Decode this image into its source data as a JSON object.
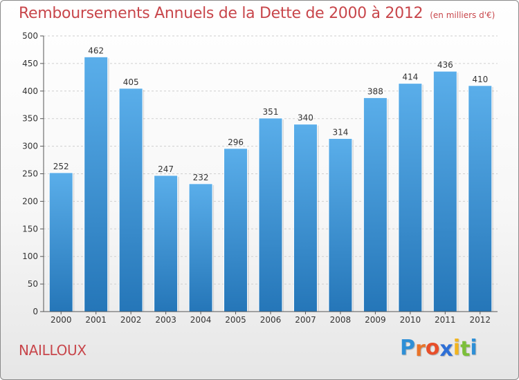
{
  "title": "Remboursements Annuels de la Dette de 2000 à 2012",
  "unit_note": "(en milliers d'€)",
  "place_name": "NAILLOUX",
  "logo": {
    "letters": [
      "P",
      "r",
      "o",
      "x",
      "i",
      "t",
      "i"
    ],
    "colors": [
      "#2e8fd6",
      "#e8742a",
      "#e84f2a",
      "#2e6fd6",
      "#f2b51e",
      "#7cbf3a",
      "#2e8fd6"
    ]
  },
  "colors": {
    "bar_top": "#5aaeea",
    "bar_bottom": "#2576b8",
    "axis": "#555555",
    "grid": "#cfcfcf",
    "title": "#c8464b"
  },
  "chart_data": {
    "type": "bar",
    "categories": [
      "2000",
      "2001",
      "2002",
      "2003",
      "2004",
      "2005",
      "2006",
      "2007",
      "2008",
      "2009",
      "2010",
      "2011",
      "2012"
    ],
    "values": [
      252,
      462,
      405,
      247,
      232,
      296,
      351,
      340,
      314,
      388,
      414,
      436,
      410
    ],
    "ylim": [
      0,
      500
    ],
    "yticks": [
      0,
      50,
      100,
      150,
      200,
      250,
      300,
      350,
      400,
      450,
      500
    ],
    "grid": true,
    "xlabel": "",
    "ylabel": ""
  }
}
